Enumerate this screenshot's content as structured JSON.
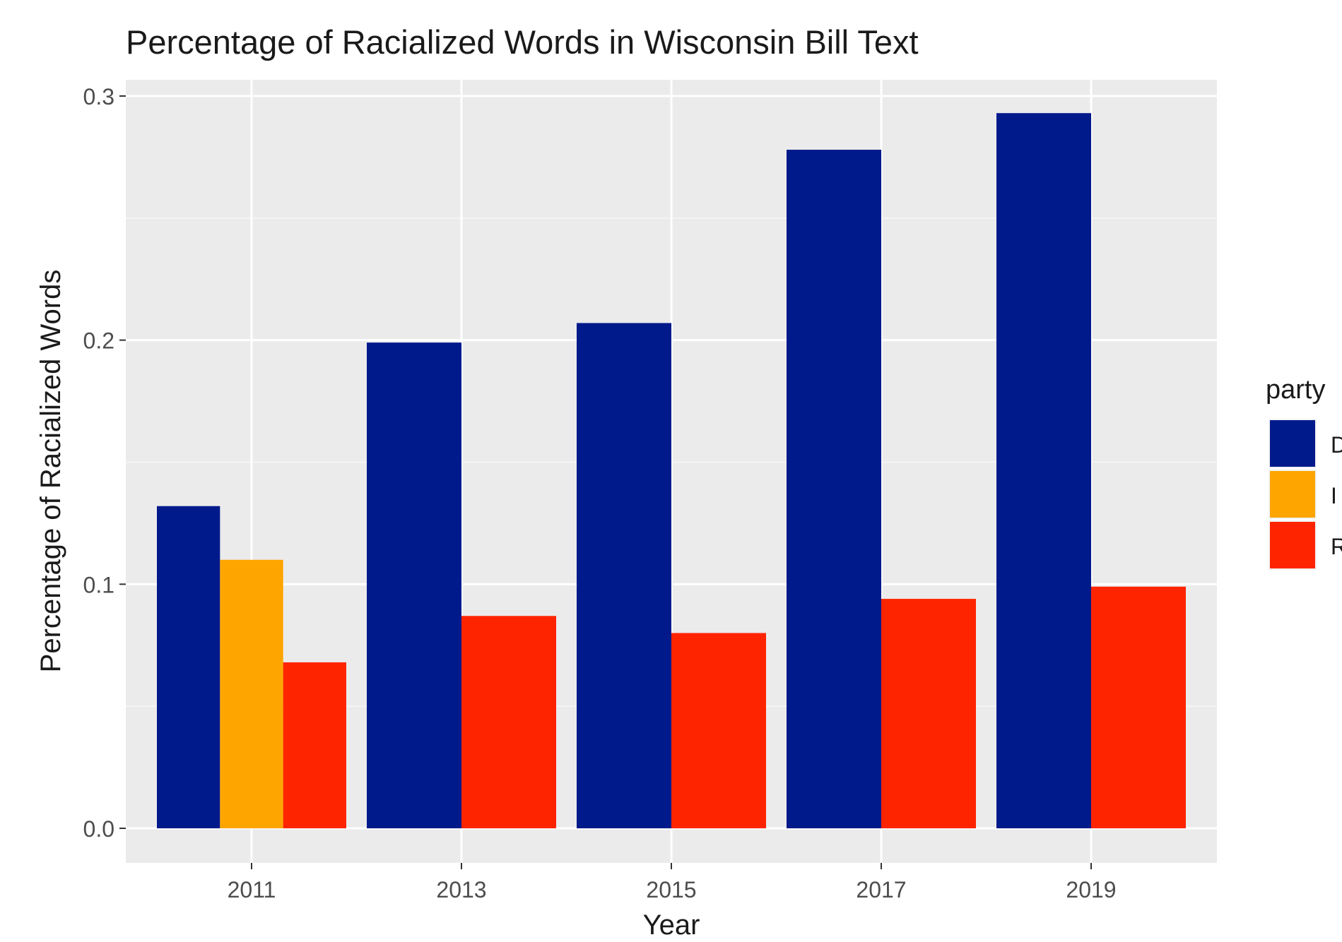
{
  "chart_data": {
    "type": "bar",
    "title": "Percentage of Racialized Words in Wisconsin Bill Text",
    "xlabel": "Year",
    "ylabel": "Percentage of Racialized Words",
    "categories": [
      "2011",
      "2013",
      "2015",
      "2017",
      "2019"
    ],
    "series": [
      {
        "name": "D",
        "color": "#001a8c",
        "values": [
          0.132,
          0.199,
          0.207,
          0.278,
          0.293
        ]
      },
      {
        "name": "I",
        "color": "#ffa500",
        "values": [
          0.11,
          null,
          null,
          null,
          null
        ]
      },
      {
        "name": "R",
        "color": "#ff2400",
        "values": [
          0.068,
          0.087,
          0.08,
          0.094,
          0.099
        ]
      }
    ],
    "ylim": [
      0,
      0.3
    ],
    "yticks": [
      "0.0",
      "0.1",
      "0.2",
      "0.3"
    ],
    "grid": true,
    "legend": {
      "title": "party",
      "position": "right"
    },
    "panel_background": "#ebebeb"
  }
}
